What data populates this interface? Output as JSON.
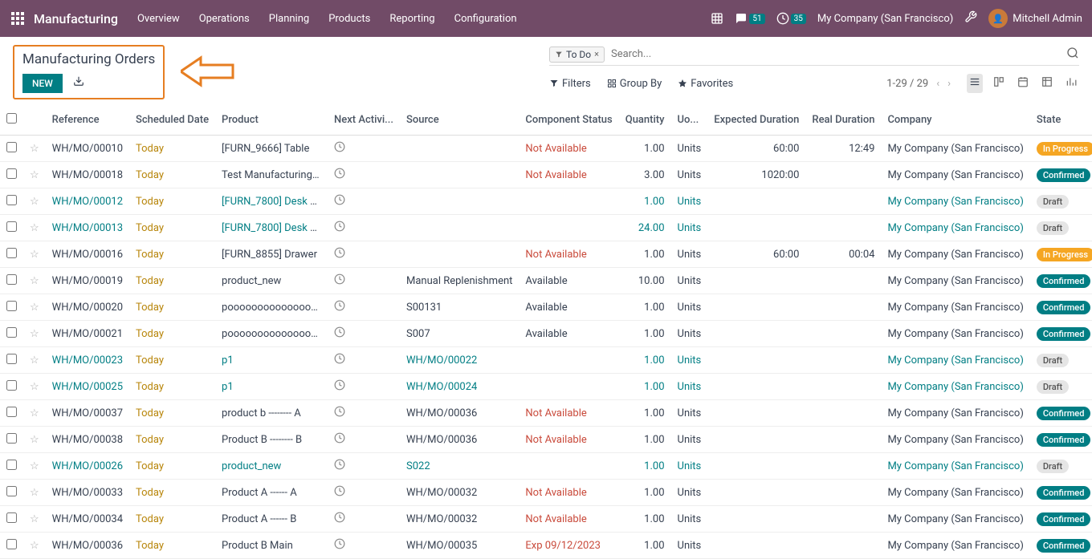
{
  "topbar": {
    "module": "Manufacturing",
    "menu": [
      "Overview",
      "Operations",
      "Planning",
      "Products",
      "Reporting",
      "Configuration"
    ],
    "msg_badge": "51",
    "activity_badge": "35",
    "company": "My Company (San Francisco)",
    "user": "Mitchell Admin"
  },
  "breadcrumb": "Manufacturing Orders",
  "new_btn": "NEW",
  "search": {
    "chip_label": "To Do",
    "placeholder": "Search..."
  },
  "filters": {
    "filters": "Filters",
    "groupby": "Group By",
    "favorites": "Favorites"
  },
  "pager": "1-29 / 29",
  "columns": {
    "reference": "Reference",
    "scheduled": "Scheduled Date",
    "product": "Product",
    "next_activity": "Next Activi...",
    "source": "Source",
    "component_status": "Component Status",
    "quantity": "Quantity",
    "uom": "Uo...",
    "expected": "Expected Duration",
    "real": "Real Duration",
    "company": "Company",
    "state": "State"
  },
  "rows": [
    {
      "ref": "WH/MO/00010",
      "ref_link": false,
      "date": "Today",
      "product": "[FURN_9666] Table",
      "product_link": false,
      "source": "",
      "status": "Not Available",
      "status_type": "not",
      "qty": "1.00",
      "uom": "Units",
      "uom_link": false,
      "expected": "60:00",
      "real": "12:49",
      "company": "My Company (San Francisco)",
      "company_link": false,
      "state": "In Progress",
      "state_type": "progress"
    },
    {
      "ref": "WH/MO/00018",
      "ref_link": false,
      "date": "Today",
      "product": "Test Manufacturing Product",
      "product_link": false,
      "source": "",
      "status": "Not Available",
      "status_type": "not",
      "qty": "3.00",
      "uom": "Units",
      "uom_link": false,
      "expected": "1020:00",
      "real": "",
      "company": "My Company (San Francisco)",
      "company_link": false,
      "state": "Confirmed",
      "state_type": "confirmed"
    },
    {
      "ref": "WH/MO/00012",
      "ref_link": true,
      "date": "Today",
      "product": "[FURN_7800] Desk Combination",
      "product_link": true,
      "source": "",
      "status": "",
      "status_type": "",
      "qty": "1.00",
      "uom": "Units",
      "uom_link": true,
      "expected": "",
      "real": "",
      "company": "My Company (San Francisco)",
      "company_link": true,
      "state": "Draft",
      "state_type": "draft"
    },
    {
      "ref": "WH/MO/00013",
      "ref_link": true,
      "date": "Today",
      "product": "[FURN_7800] Desk Combination",
      "product_link": true,
      "source": "",
      "status": "",
      "status_type": "",
      "qty": "24.00",
      "uom": "Units",
      "uom_link": true,
      "expected": "",
      "real": "",
      "company": "My Company (San Francisco)",
      "company_link": true,
      "state": "Draft",
      "state_type": "draft"
    },
    {
      "ref": "WH/MO/00016",
      "ref_link": false,
      "date": "Today",
      "product": "[FURN_8855] Drawer",
      "product_link": false,
      "source": "",
      "status": "Not Available",
      "status_type": "not",
      "qty": "1.00",
      "uom": "Units",
      "uom_link": false,
      "expected": "60:00",
      "real": "00:04",
      "company": "My Company (San Francisco)",
      "company_link": false,
      "state": "In Progress",
      "state_type": "progress"
    },
    {
      "ref": "WH/MO/00019",
      "ref_link": false,
      "date": "Today",
      "product": "product_new",
      "product_link": false,
      "source": "Manual Replenishment",
      "status": "Available",
      "status_type": "avail",
      "qty": "10.00",
      "uom": "Units",
      "uom_link": false,
      "expected": "",
      "real": "",
      "company": "My Company (San Francisco)",
      "company_link": false,
      "state": "Confirmed",
      "state_type": "confirmed"
    },
    {
      "ref": "WH/MO/00020",
      "ref_link": false,
      "date": "Today",
      "product": "pooooooooooooooooo",
      "product_link": false,
      "source": "S00131",
      "status": "Available",
      "status_type": "avail",
      "qty": "1.00",
      "uom": "Units",
      "uom_link": false,
      "expected": "",
      "real": "",
      "company": "My Company (San Francisco)",
      "company_link": false,
      "state": "Confirmed",
      "state_type": "confirmed"
    },
    {
      "ref": "WH/MO/00021",
      "ref_link": false,
      "date": "Today",
      "product": "pooooooooooooooooo",
      "product_link": false,
      "source": "S007",
      "status": "Available",
      "status_type": "avail",
      "qty": "1.00",
      "uom": "Units",
      "uom_link": false,
      "expected": "",
      "real": "",
      "company": "My Company (San Francisco)",
      "company_link": false,
      "state": "Confirmed",
      "state_type": "confirmed"
    },
    {
      "ref": "WH/MO/00023",
      "ref_link": true,
      "date": "Today",
      "product": "p1",
      "product_link": true,
      "source": "WH/MO/00022",
      "source_link": true,
      "status": "",
      "status_type": "",
      "qty": "1.00",
      "uom": "Units",
      "uom_link": true,
      "expected": "",
      "real": "",
      "company": "My Company (San Francisco)",
      "company_link": true,
      "state": "Draft",
      "state_type": "draft"
    },
    {
      "ref": "WH/MO/00025",
      "ref_link": true,
      "date": "Today",
      "product": "p1",
      "product_link": true,
      "source": "WH/MO/00024",
      "source_link": true,
      "status": "",
      "status_type": "",
      "qty": "1.00",
      "uom": "Units",
      "uom_link": true,
      "expected": "",
      "real": "",
      "company": "My Company (San Francisco)",
      "company_link": true,
      "state": "Draft",
      "state_type": "draft"
    },
    {
      "ref": "WH/MO/00037",
      "ref_link": false,
      "date": "Today",
      "product": "product b -------- A",
      "product_link": false,
      "source": "WH/MO/00036",
      "status": "Not Available",
      "status_type": "not",
      "qty": "1.00",
      "uom": "Units",
      "uom_link": false,
      "expected": "",
      "real": "",
      "company": "My Company (San Francisco)",
      "company_link": false,
      "state": "Confirmed",
      "state_type": "confirmed"
    },
    {
      "ref": "WH/MO/00038",
      "ref_link": false,
      "date": "Today",
      "product": "Product B -------- B",
      "product_link": false,
      "source": "WH/MO/00036",
      "status": "Not Available",
      "status_type": "not",
      "qty": "1.00",
      "uom": "Units",
      "uom_link": false,
      "expected": "",
      "real": "",
      "company": "My Company (San Francisco)",
      "company_link": false,
      "state": "Confirmed",
      "state_type": "confirmed"
    },
    {
      "ref": "WH/MO/00026",
      "ref_link": true,
      "date": "Today",
      "product": "product_new",
      "product_link": true,
      "source": "S022",
      "source_link": true,
      "status": "",
      "status_type": "",
      "qty": "1.00",
      "uom": "Units",
      "uom_link": true,
      "expected": "",
      "real": "",
      "company": "My Company (San Francisco)",
      "company_link": true,
      "state": "Draft",
      "state_type": "draft"
    },
    {
      "ref": "WH/MO/00033",
      "ref_link": false,
      "date": "Today",
      "product": "Product A ------ A",
      "product_link": false,
      "source": "WH/MO/00032",
      "status": "Not Available",
      "status_type": "not",
      "qty": "1.00",
      "uom": "Units",
      "uom_link": false,
      "expected": "",
      "real": "",
      "company": "My Company (San Francisco)",
      "company_link": false,
      "state": "Confirmed",
      "state_type": "confirmed"
    },
    {
      "ref": "WH/MO/00034",
      "ref_link": false,
      "date": "Today",
      "product": "Product A ------ B",
      "product_link": false,
      "source": "WH/MO/00032",
      "status": "Not Available",
      "status_type": "not",
      "qty": "1.00",
      "uom": "Units",
      "uom_link": false,
      "expected": "",
      "real": "",
      "company": "My Company (San Francisco)",
      "company_link": false,
      "state": "Confirmed",
      "state_type": "confirmed"
    },
    {
      "ref": "WH/MO/00036",
      "ref_link": false,
      "date": "Today",
      "product": "Product B Main",
      "product_link": false,
      "source": "WH/MO/00035",
      "status": "Exp 09/12/2023",
      "status_type": "not",
      "qty": "1.00",
      "uom": "Units",
      "uom_link": false,
      "expected": "",
      "real": "",
      "company": "My Company (San Francisco)",
      "company_link": false,
      "state": "Confirmed",
      "state_type": "confirmed"
    }
  ]
}
